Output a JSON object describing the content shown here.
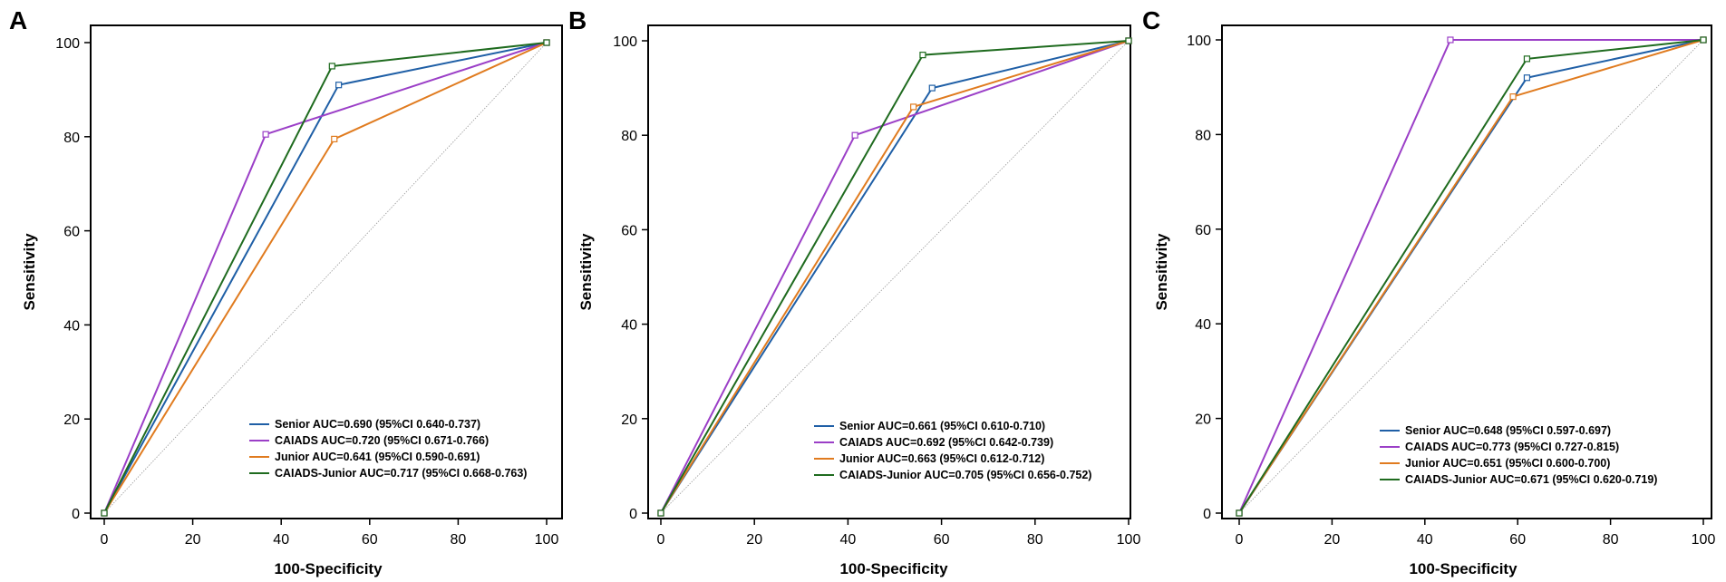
{
  "chart_data": [
    {
      "type": "line",
      "panel_label": "A",
      "xlabel": "100-Specificity",
      "ylabel": "Sensitivity",
      "xlim": [
        0,
        100
      ],
      "ylim": [
        0,
        100
      ],
      "xticks": [
        0,
        20,
        40,
        60,
        80,
        100
      ],
      "yticks": [
        0,
        20,
        40,
        60,
        80,
        100
      ],
      "legend_position": "bottom-right",
      "series": [
        {
          "name": "Senior",
          "legend": "Senior AUC=0.690 (95%CI 0.640-0.737)",
          "color": "#1f5fa6",
          "x": [
            0,
            53,
            100
          ],
          "y": [
            0,
            91,
            100
          ]
        },
        {
          "name": "CAIADS",
          "legend": "CAIADS AUC=0.720 (95%CI 0.671-0.766)",
          "color": "#9b3fc7",
          "x": [
            0,
            36.5,
            100
          ],
          "y": [
            0,
            80.5,
            100
          ]
        },
        {
          "name": "Junior",
          "legend": "Junior AUC=0.641 (95%CI 0.590-0.691)",
          "color": "#e07b1f",
          "x": [
            0,
            52,
            100
          ],
          "y": [
            0,
            79.5,
            100
          ]
        },
        {
          "name": "CAIADS-Junior",
          "legend": "CAIADS-Junior AUC=0.717 (95%CI 0.668-0.763)",
          "color": "#1f6b1f",
          "x": [
            0,
            51.5,
            100
          ],
          "y": [
            0,
            95,
            100
          ]
        }
      ]
    },
    {
      "type": "line",
      "panel_label": "B",
      "xlabel": "100-Specificity",
      "ylabel": "Sensitivity",
      "xlim": [
        0,
        100
      ],
      "ylim": [
        0,
        100
      ],
      "xticks": [
        0,
        20,
        40,
        60,
        80,
        100
      ],
      "yticks": [
        0,
        20,
        40,
        60,
        80,
        100
      ],
      "legend_position": "bottom-right",
      "series": [
        {
          "name": "Senior",
          "legend": "Senior AUC=0.661 (95%CI 0.610-0.710)",
          "color": "#1f5fa6",
          "x": [
            0,
            58,
            100
          ],
          "y": [
            0,
            90,
            100
          ]
        },
        {
          "name": "CAIADS",
          "legend": "CAIADS AUC=0.692 (95%CI 0.642-0.739)",
          "color": "#9b3fc7",
          "x": [
            0,
            41.5,
            100
          ],
          "y": [
            0,
            80,
            100
          ]
        },
        {
          "name": "Junior",
          "legend": "Junior AUC=0.663 (95%CI 0.612-0.712)",
          "color": "#e07b1f",
          "x": [
            0,
            54,
            100
          ],
          "y": [
            0,
            86,
            100
          ]
        },
        {
          "name": "CAIADS-Junior",
          "legend": "CAIADS-Junior AUC=0.705 (95%CI 0.656-0.752)",
          "color": "#1f6b1f",
          "x": [
            0,
            56,
            100
          ],
          "y": [
            0,
            97,
            100
          ]
        }
      ]
    },
    {
      "type": "line",
      "panel_label": "C",
      "xlabel": "100-Specificity",
      "ylabel": "Sensitivity",
      "xlim": [
        0,
        100
      ],
      "ylim": [
        0,
        100
      ],
      "xticks": [
        0,
        20,
        40,
        60,
        80,
        100
      ],
      "yticks": [
        0,
        20,
        40,
        60,
        80,
        100
      ],
      "legend_position": "bottom-right",
      "series": [
        {
          "name": "Senior",
          "legend": "Senior AUC=0.648 (95%CI 0.597-0.697)",
          "color": "#1f5fa6",
          "x": [
            0,
            62,
            100
          ],
          "y": [
            0,
            92,
            100
          ]
        },
        {
          "name": "CAIADS",
          "legend": "CAIADS AUC=0.773 (95%CI 0.727-0.815)",
          "color": "#9b3fc7",
          "x": [
            0,
            45.5,
            100
          ],
          "y": [
            0,
            100,
            100
          ]
        },
        {
          "name": "Junior",
          "legend": "Junior AUC=0.651 (95%CI 0.600-0.700)",
          "color": "#e07b1f",
          "x": [
            0,
            59,
            100
          ],
          "y": [
            0,
            88,
            100
          ]
        },
        {
          "name": "CAIADS-Junior",
          "legend": "CAIADS-Junior AUC=0.671 (95%CI 0.620-0.719)",
          "color": "#1f6b1f",
          "x": [
            0,
            62,
            100
          ],
          "y": [
            0,
            96,
            100
          ]
        }
      ]
    }
  ]
}
